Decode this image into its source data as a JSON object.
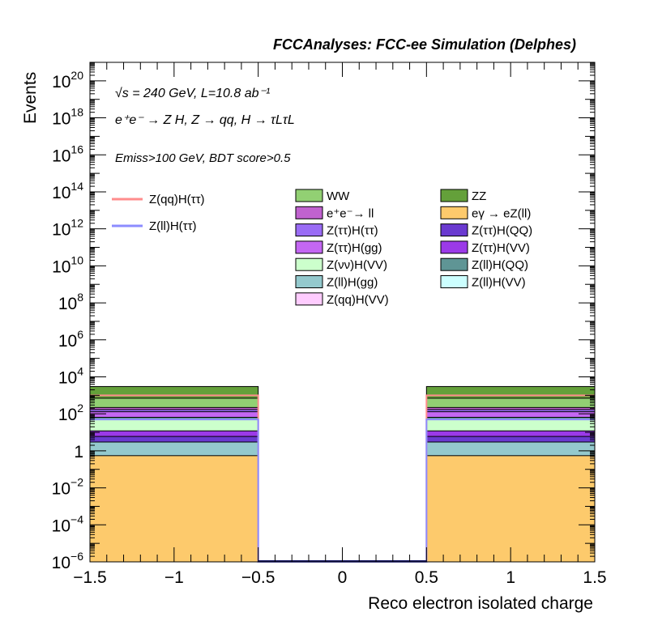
{
  "chart_data": {
    "type": "bar",
    "title": "FCCAnalyses: FCC-ee Simulation (Delphes)",
    "annotations": {
      "energy": "√s = 240 GeV, L=10.8 ab⁻¹",
      "process": "e⁺e⁻ → Z H, Z → qq, H → τLτL",
      "cuts": "Emiss>100 GeV, BDT score>0.5"
    },
    "xlabel": "Reco electron isolated charge",
    "ylabel": "Events",
    "xlim": [
      -1.5,
      1.5
    ],
    "ylim": [
      1e-06,
      1e+21
    ],
    "log_y": true,
    "x_ticks": [
      "−1.5",
      "−1",
      "−0.5",
      "0",
      "0.5",
      "1",
      "1.5"
    ],
    "y_ticks": [
      {
        "base": "10",
        "exp": "−6"
      },
      {
        "base": "10",
        "exp": "−4"
      },
      {
        "base": "10",
        "exp": "−2"
      },
      {
        "base": "1",
        "exp": ""
      },
      {
        "base": "10",
        "exp": "2"
      },
      {
        "base": "10",
        "exp": "4"
      },
      {
        "base": "10",
        "exp": "6"
      },
      {
        "base": "10",
        "exp": "8"
      },
      {
        "base": "10",
        "exp": "10"
      },
      {
        "base": "10",
        "exp": "12"
      },
      {
        "base": "10",
        "exp": "14"
      },
      {
        "base": "10",
        "exp": "16"
      },
      {
        "base": "10",
        "exp": "18"
      },
      {
        "base": "10",
        "exp": "20"
      }
    ],
    "bins": [
      [
        -1.5,
        -0.5
      ],
      [
        -0.5,
        0.5
      ],
      [
        0.5,
        1.5
      ]
    ],
    "stack": [
      {
        "name": "eγ → eZ(ll)",
        "color": "#fdca6c",
        "cumulative": [
          0.55,
          0,
          0.55
        ]
      },
      {
        "name": "Z(ll)H(gg)",
        "color": "#94c9cd",
        "cumulative": [
          3,
          0,
          3
        ]
      },
      {
        "name": "Z(ττ)H(QQ)",
        "color": "#6a3ad0",
        "cumulative": [
          6,
          0,
          6
        ]
      },
      {
        "name": "Z(ττ)H(VV)",
        "color": "#9b3ae8",
        "cumulative": [
          12,
          0,
          12
        ]
      },
      {
        "name": "Z(νν)H(VV)",
        "color": "#ccffcc",
        "cumulative": [
          50,
          0,
          50
        ]
      },
      {
        "name": "Z(ll)H(QQ)",
        "color": "#5f9595",
        "cumulative": [
          65,
          0,
          65
        ]
      },
      {
        "name": "Z(ττ)H(gg)",
        "color": "#c467f3",
        "cumulative": [
          130,
          0,
          130
        ]
      },
      {
        "name": "Z(ττ)H(ττ)",
        "color": "#9a6cf5",
        "cumulative": [
          170,
          0,
          170
        ]
      },
      {
        "name": "e⁺e⁻→ ll",
        "color": "#c062cf",
        "cumulative": [
          220,
          0,
          220
        ]
      },
      {
        "name": "WW",
        "color": "#92d073",
        "cumulative": [
          700,
          0,
          700
        ]
      },
      {
        "name": "ZZ",
        "color": "#64a03a",
        "cumulative": [
          3000,
          0,
          3000
        ]
      }
    ],
    "lines": [
      {
        "name": "Z(qq)H(ττ)",
        "color": "#ff8c8c",
        "values": [
          1000,
          0,
          1000
        ]
      },
      {
        "name": "Z(ll)H(ττ)",
        "color": "#8c8cff",
        "values": [
          50,
          0,
          50
        ]
      }
    ],
    "legend_lines": [
      {
        "label": "Z(qq)H(ττ)",
        "color": "#ff8c8c"
      },
      {
        "label": "Z(ll)H(ττ)",
        "color": "#8c8cff"
      }
    ],
    "legend_boxes": [
      {
        "label": "WW",
        "color": "#92d073"
      },
      {
        "label": "ZZ",
        "color": "#64a03a"
      },
      {
        "label": "e⁺e⁻→ ll",
        "color": "#c062cf"
      },
      {
        "label": "eγ → eZ(ll)",
        "color": "#fdca6c"
      },
      {
        "label": "Z(ττ)H(ττ)",
        "color": "#9a6cf5"
      },
      {
        "label": "Z(ττ)H(QQ)",
        "color": "#6a3ad0"
      },
      {
        "label": "Z(ττ)H(gg)",
        "color": "#c467f3"
      },
      {
        "label": "Z(ττ)H(VV)",
        "color": "#9b3ae8"
      },
      {
        "label": "Z(νν)H(VV)",
        "color": "#ccffcc"
      },
      {
        "label": "Z(ll)H(QQ)",
        "color": "#5f9595"
      },
      {
        "label": "Z(ll)H(gg)",
        "color": "#94c9cd"
      },
      {
        "label": "Z(ll)H(VV)",
        "color": "#ccffff"
      },
      {
        "label": "Z(qq)H(VV)",
        "color": "#ffccff"
      }
    ],
    "legend_placement": "top",
    "grid": false
  }
}
